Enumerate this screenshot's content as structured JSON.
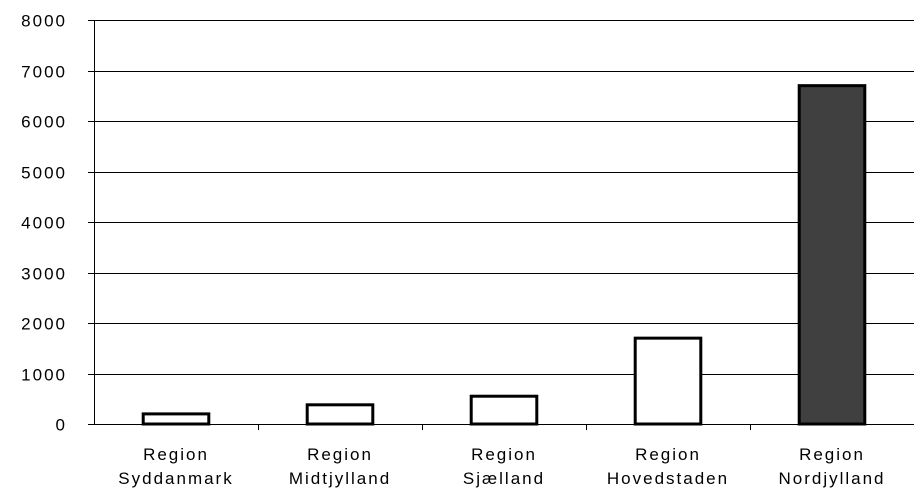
{
  "chart_data": {
    "type": "bar",
    "title": "",
    "xlabel": "",
    "ylabel": "",
    "ylim": [
      0,
      8000
    ],
    "yticks": [
      0,
      1000,
      2000,
      3000,
      4000,
      5000,
      6000,
      7000,
      8000
    ],
    "grid": true,
    "categories": [
      [
        "Region",
        "Syddanmark"
      ],
      [
        "Region",
        "Midtjylland"
      ],
      [
        "Region",
        "Sjælland"
      ],
      [
        "Region",
        "Hovedstaden"
      ],
      [
        "Region",
        "Nordjylland"
      ]
    ],
    "values": [
      200,
      380,
      550,
      1700,
      6700
    ],
    "colors": [
      "#ffffff",
      "#ffffff",
      "#ffffff",
      "#ffffff",
      "#404040"
    ],
    "stroke_color": "#000000"
  }
}
